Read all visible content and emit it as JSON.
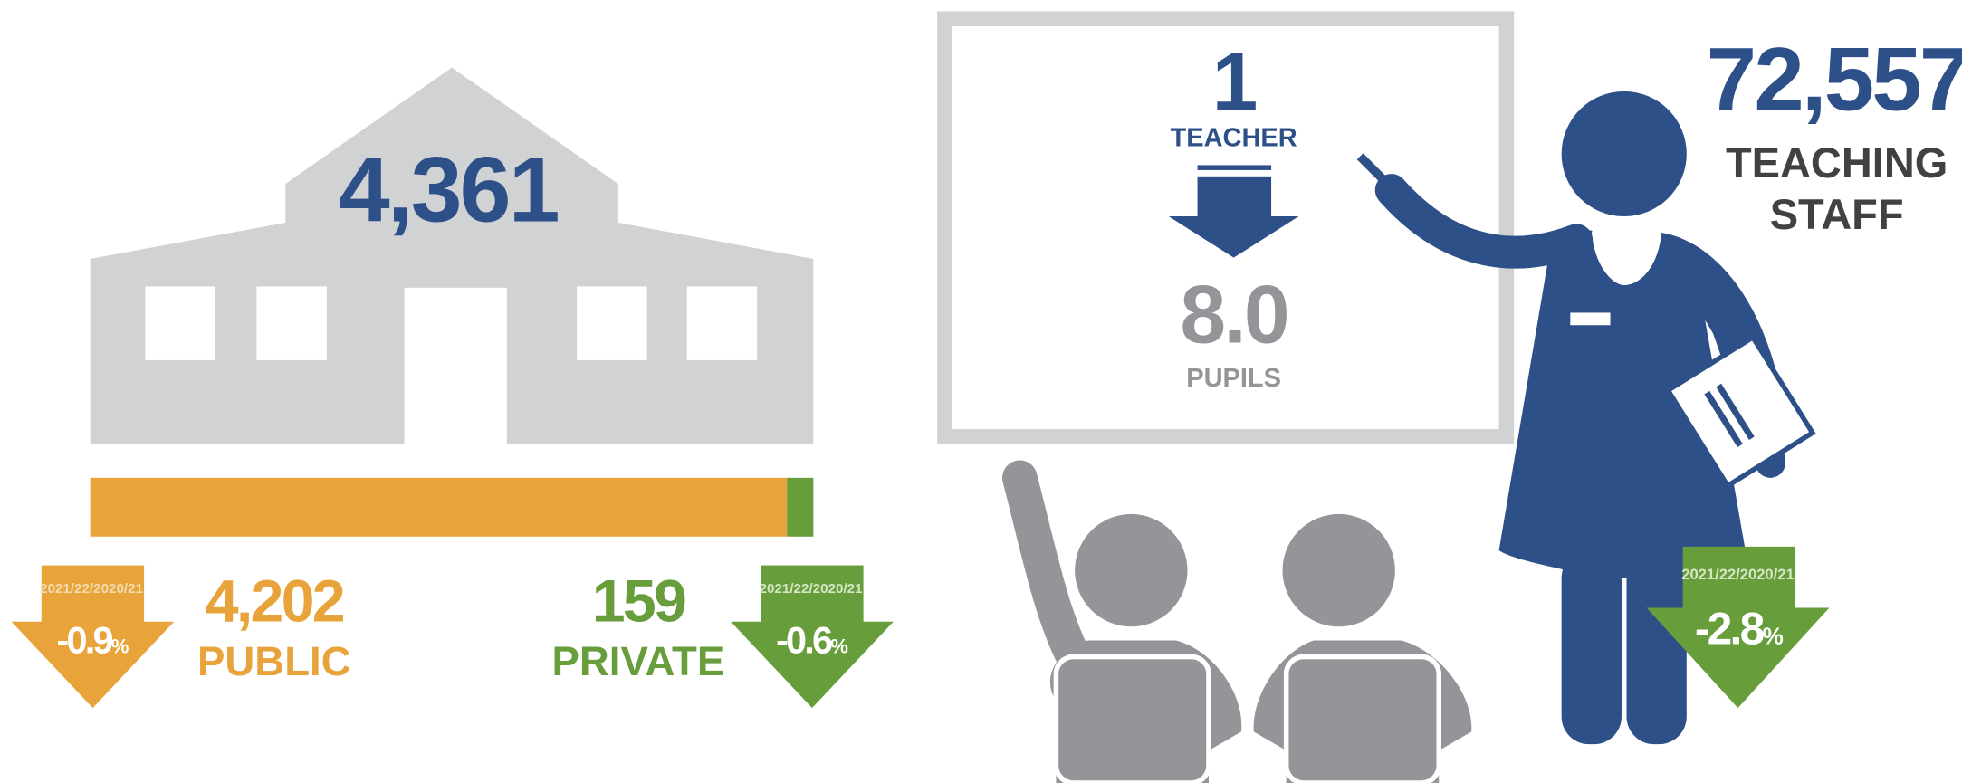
{
  "schools": {
    "total": "4,361",
    "public": {
      "value": 4202,
      "label": "4,202"
    },
    "public_label": "PUBLIC",
    "public_change": {
      "period": "2021/22/2020/21",
      "value": "-0.9",
      "unit": "%"
    },
    "private": {
      "value": 159,
      "label": "159"
    },
    "private_label": "PRIVATE",
    "private_change": {
      "period": "2021/22/2020/21",
      "value": "-0.6",
      "unit": "%"
    }
  },
  "ratio": {
    "teacher_count": "1",
    "teacher_label": "TEACHER",
    "pupils_count": "8.0",
    "pupils_label": "PUPILS"
  },
  "staff": {
    "total": "72,557",
    "label_line1": "TEACHING",
    "label_line2": "STAFF",
    "change": {
      "period": "2021/22/2020/21",
      "value": "-2.8",
      "unit": "%"
    }
  }
}
